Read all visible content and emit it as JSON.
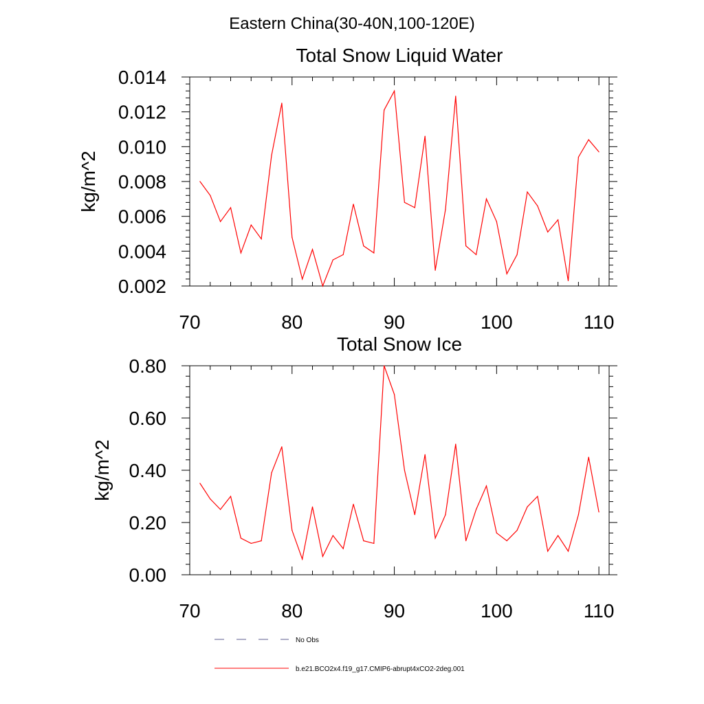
{
  "figure_title": "Eastern China(30-40N,100-120E)",
  "legend": {
    "entries": [
      {
        "label": "No Obs",
        "style": "dashed",
        "color": "#5a5a8c"
      },
      {
        "label": "b.e21.BCO2x4.f19_g17.CMIP6-abrupt4xCO2-2deg.001",
        "style": "solid",
        "color": "#ff0000"
      }
    ]
  },
  "chart_data": [
    {
      "type": "line",
      "title": "Total Snow Liquid Water",
      "xlabel": "",
      "ylabel": "kg/m^2",
      "xlim": [
        70,
        111
      ],
      "ylim": [
        0.002,
        0.014
      ],
      "xticks": [
        70,
        80,
        90,
        100,
        110
      ],
      "xtick_labels": [
        "70",
        "80",
        "90",
        "100",
        "110"
      ],
      "yticks": [
        0.002,
        0.004,
        0.006,
        0.008,
        0.01,
        0.012,
        0.014
      ],
      "ytick_labels": [
        "0.002",
        "0.004",
        "0.006",
        "0.008",
        "0.010",
        "0.012",
        "0.014"
      ],
      "grid": false,
      "series": [
        {
          "name": "b.e21.BCO2x4.f19_g17.CMIP6-abrupt4xCO2-2deg.001",
          "color": "#ff0000",
          "x": [
            71,
            72,
            73,
            74,
            75,
            76,
            77,
            78,
            79,
            80,
            81,
            82,
            83,
            84,
            85,
            86,
            87,
            88,
            89,
            90,
            91,
            92,
            93,
            94,
            95,
            96,
            97,
            98,
            99,
            100,
            101,
            102,
            103,
            104,
            105,
            106,
            107,
            108,
            109,
            110
          ],
          "values": [
            0.008,
            0.0072,
            0.0057,
            0.0065,
            0.0039,
            0.0055,
            0.0047,
            0.0095,
            0.0125,
            0.0048,
            0.0024,
            0.0041,
            0.002,
            0.0035,
            0.0038,
            0.0067,
            0.0043,
            0.0039,
            0.0121,
            0.0132,
            0.0068,
            0.0065,
            0.0106,
            0.0029,
            0.0064,
            0.0129,
            0.0043,
            0.0038,
            0.007,
            0.0057,
            0.0027,
            0.0038,
            0.0074,
            0.0066,
            0.0051,
            0.0058,
            0.0023,
            0.0094,
            0.0104,
            0.0097
          ]
        }
      ]
    },
    {
      "type": "line",
      "title": "Total Snow Ice",
      "xlabel": "",
      "ylabel": "kg/m^2",
      "xlim": [
        70,
        111
      ],
      "ylim": [
        0.0,
        0.8
      ],
      "xticks": [
        70,
        80,
        90,
        100,
        110
      ],
      "xtick_labels": [
        "70",
        "80",
        "90",
        "100",
        "110"
      ],
      "yticks": [
        0.0,
        0.2,
        0.4,
        0.6,
        0.8
      ],
      "ytick_labels": [
        "0.00",
        "0.20",
        "0.40",
        "0.60",
        "0.80"
      ],
      "grid": false,
      "series": [
        {
          "name": "b.e21.BCO2x4.f19_g17.CMIP6-abrupt4xCO2-2deg.001",
          "color": "#ff0000",
          "x": [
            71,
            72,
            73,
            74,
            75,
            76,
            77,
            78,
            79,
            80,
            81,
            82,
            83,
            84,
            85,
            86,
            87,
            88,
            89,
            90,
            91,
            92,
            93,
            94,
            95,
            96,
            97,
            98,
            99,
            100,
            101,
            102,
            103,
            104,
            105,
            106,
            107,
            108,
            109,
            110
          ],
          "values": [
            0.35,
            0.29,
            0.25,
            0.3,
            0.14,
            0.12,
            0.13,
            0.39,
            0.49,
            0.17,
            0.06,
            0.26,
            0.07,
            0.15,
            0.1,
            0.27,
            0.13,
            0.12,
            0.8,
            0.69,
            0.4,
            0.23,
            0.46,
            0.14,
            0.23,
            0.5,
            0.13,
            0.25,
            0.34,
            0.16,
            0.13,
            0.17,
            0.26,
            0.3,
            0.09,
            0.15,
            0.09,
            0.23,
            0.45,
            0.24
          ]
        }
      ]
    }
  ]
}
